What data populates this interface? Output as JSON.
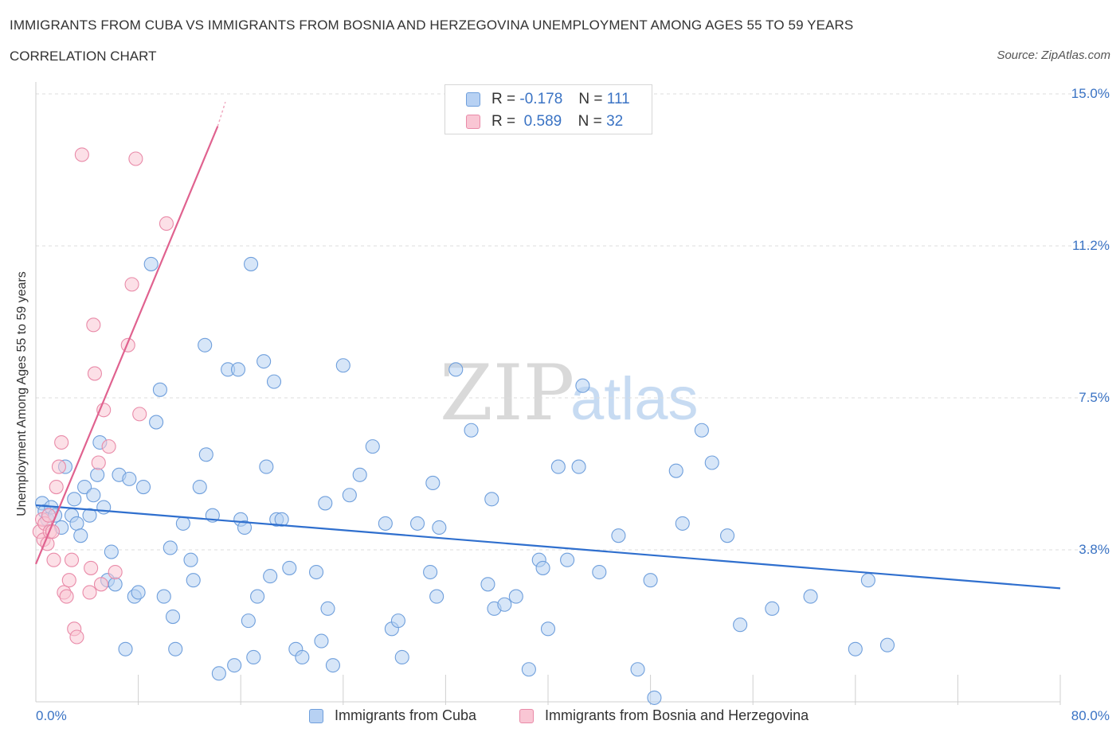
{
  "header": {
    "title": "IMMIGRANTS FROM CUBA VS IMMIGRANTS FROM BOSNIA AND HERZEGOVINA UNEMPLOYMENT AMONG AGES 55 TO 59 YEARS",
    "subtitle": "CORRELATION CHART",
    "source": "Source: ZipAtlas.com"
  },
  "watermark": {
    "zip": "ZIP",
    "atlas": "atlas"
  },
  "legend": {
    "r_label": "R =",
    "n_label": "N =",
    "rows": [
      {
        "r": "-0.178",
        "n": "111",
        "fill": "#b7d1f3",
        "stroke": "#6f9fdc"
      },
      {
        "r": "0.589",
        "n": "32",
        "fill": "#f9c6d4",
        "stroke": "#e98aa8"
      }
    ]
  },
  "chart_data": {
    "type": "scatter",
    "xlabel": "",
    "ylabel": "Unemployment Among Ages 55 to 59 years",
    "xlim": [
      0,
      80
    ],
    "ylim": [
      0,
      15
    ],
    "x_tick_labels": [
      "0.0%",
      "80.0%"
    ],
    "y_ticks": [
      {
        "value": 3.75,
        "label": "3.8%"
      },
      {
        "value": 7.5,
        "label": "7.5%"
      },
      {
        "value": 11.25,
        "label": "11.2%"
      },
      {
        "value": 15.0,
        "label": "15.0%"
      }
    ],
    "grid": true,
    "legend_position": "top-center",
    "series": [
      {
        "name": "Immigrants from Cuba",
        "color": "#6f9fdc",
        "fill": "#b7d1f3",
        "trend": {
          "x": [
            0,
            80
          ],
          "y": [
            4.85,
            2.8
          ],
          "color": "#2f6fce"
        },
        "points": [
          [
            0.5,
            4.9
          ],
          [
            0.7,
            4.7
          ],
          [
            0.9,
            4.5
          ],
          [
            1.2,
            4.8
          ],
          [
            1.5,
            4.6
          ],
          [
            2.0,
            4.3
          ],
          [
            2.3,
            5.8
          ],
          [
            2.8,
            4.6
          ],
          [
            3.0,
            5.0
          ],
          [
            3.2,
            4.4
          ],
          [
            3.5,
            4.1
          ],
          [
            3.8,
            5.3
          ],
          [
            4.2,
            4.6
          ],
          [
            4.5,
            5.1
          ],
          [
            4.8,
            5.6
          ],
          [
            5.0,
            6.4
          ],
          [
            5.3,
            4.8
          ],
          [
            5.6,
            3.0
          ],
          [
            5.9,
            3.7
          ],
          [
            6.2,
            2.9
          ],
          [
            6.5,
            5.6
          ],
          [
            7.0,
            1.3
          ],
          [
            7.3,
            5.5
          ],
          [
            7.7,
            2.6
          ],
          [
            8.0,
            2.7
          ],
          [
            8.4,
            5.3
          ],
          [
            9.0,
            10.8
          ],
          [
            9.4,
            6.9
          ],
          [
            9.7,
            7.7
          ],
          [
            10.0,
            2.6
          ],
          [
            10.5,
            3.8
          ],
          [
            10.7,
            2.1
          ],
          [
            10.9,
            1.3
          ],
          [
            11.5,
            4.4
          ],
          [
            12.1,
            3.5
          ],
          [
            12.3,
            3.0
          ],
          [
            12.8,
            5.3
          ],
          [
            13.2,
            8.8
          ],
          [
            13.3,
            6.1
          ],
          [
            13.8,
            4.6
          ],
          [
            14.3,
            0.7
          ],
          [
            15.0,
            8.2
          ],
          [
            15.5,
            0.9
          ],
          [
            15.8,
            8.2
          ],
          [
            16.0,
            4.5
          ],
          [
            16.3,
            4.3
          ],
          [
            16.6,
            2.0
          ],
          [
            16.8,
            10.8
          ],
          [
            17.0,
            1.1
          ],
          [
            17.3,
            2.6
          ],
          [
            17.8,
            8.4
          ],
          [
            18.0,
            5.8
          ],
          [
            18.3,
            3.1
          ],
          [
            18.6,
            7.9
          ],
          [
            18.8,
            4.5
          ],
          [
            19.2,
            4.5
          ],
          [
            19.8,
            3.3
          ],
          [
            20.3,
            1.3
          ],
          [
            20.8,
            1.1
          ],
          [
            21.9,
            3.2
          ],
          [
            22.3,
            1.5
          ],
          [
            22.6,
            4.9
          ],
          [
            22.8,
            2.3
          ],
          [
            23.2,
            0.9
          ],
          [
            24.0,
            8.3
          ],
          [
            24.5,
            5.1
          ],
          [
            25.3,
            5.6
          ],
          [
            26.3,
            6.3
          ],
          [
            27.3,
            4.4
          ],
          [
            27.8,
            1.8
          ],
          [
            28.3,
            2.0
          ],
          [
            28.6,
            1.1
          ],
          [
            29.8,
            4.4
          ],
          [
            30.8,
            3.2
          ],
          [
            31.0,
            5.4
          ],
          [
            31.3,
            2.6
          ],
          [
            31.5,
            4.3
          ],
          [
            32.8,
            8.2
          ],
          [
            33.0,
            14.3
          ],
          [
            34.0,
            6.7
          ],
          [
            35.3,
            2.9
          ],
          [
            35.6,
            5.0
          ],
          [
            35.8,
            2.3
          ],
          [
            36.6,
            2.4
          ],
          [
            37.5,
            2.6
          ],
          [
            38.5,
            0.8
          ],
          [
            39.3,
            3.5
          ],
          [
            39.6,
            3.3
          ],
          [
            40.0,
            1.8
          ],
          [
            40.8,
            5.8
          ],
          [
            41.5,
            3.5
          ],
          [
            42.4,
            5.8
          ],
          [
            42.7,
            7.8
          ],
          [
            44.0,
            3.2
          ],
          [
            45.5,
            4.1
          ],
          [
            47.0,
            0.8
          ],
          [
            48.0,
            3.0
          ],
          [
            48.3,
            0.1
          ],
          [
            50.0,
            5.7
          ],
          [
            50.5,
            4.4
          ],
          [
            52.0,
            6.7
          ],
          [
            52.8,
            5.9
          ],
          [
            54.0,
            4.1
          ],
          [
            55.0,
            1.9
          ],
          [
            57.5,
            2.3
          ],
          [
            60.5,
            2.6
          ],
          [
            64.0,
            1.3
          ],
          [
            65.0,
            3.0
          ],
          [
            66.5,
            1.4
          ]
        ]
      },
      {
        "name": "Immigrants from Bosnia and Herzegovina",
        "color": "#e98aa8",
        "fill": "#f9c6d4",
        "trend": {
          "x": [
            0,
            14.2
          ],
          "y": [
            3.4,
            14.2
          ],
          "color": "#e0628f",
          "dash_to": [
            14.8,
            14.8
          ]
        },
        "points": [
          [
            0.3,
            4.2
          ],
          [
            0.5,
            4.5
          ],
          [
            0.6,
            4.0
          ],
          [
            0.7,
            4.4
          ],
          [
            0.9,
            3.9
          ],
          [
            1.0,
            4.6
          ],
          [
            1.1,
            4.2
          ],
          [
            1.3,
            4.2
          ],
          [
            1.4,
            3.5
          ],
          [
            1.6,
            5.3
          ],
          [
            1.8,
            5.8
          ],
          [
            2.0,
            6.4
          ],
          [
            2.2,
            2.7
          ],
          [
            2.4,
            2.6
          ],
          [
            2.6,
            3.0
          ],
          [
            2.8,
            3.5
          ],
          [
            3.0,
            1.8
          ],
          [
            3.2,
            1.6
          ],
          [
            3.6,
            13.5
          ],
          [
            4.2,
            2.7
          ],
          [
            4.3,
            3.3
          ],
          [
            4.5,
            9.3
          ],
          [
            4.6,
            8.1
          ],
          [
            4.9,
            5.9
          ],
          [
            5.1,
            2.9
          ],
          [
            5.3,
            7.2
          ],
          [
            5.7,
            6.3
          ],
          [
            6.2,
            3.2
          ],
          [
            7.2,
            8.8
          ],
          [
            7.5,
            10.3
          ],
          [
            7.8,
            13.4
          ],
          [
            8.1,
            7.1
          ],
          [
            10.2,
            11.8
          ]
        ]
      }
    ]
  },
  "bottom_legend": {
    "items": [
      {
        "label": "Immigrants from Cuba"
      },
      {
        "label": "Immigrants from Bosnia and Herzegovina"
      }
    ]
  }
}
